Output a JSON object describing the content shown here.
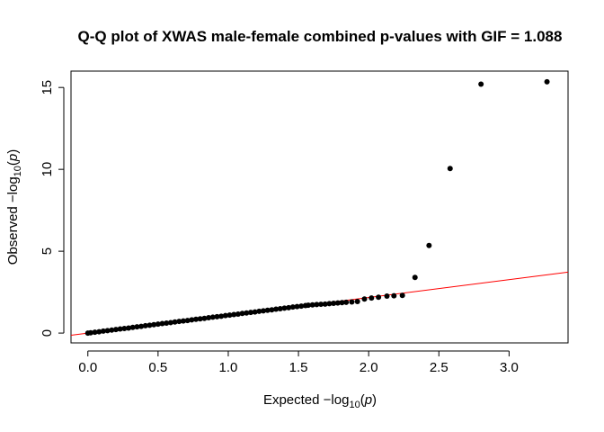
{
  "chart_data": {
    "type": "scatter",
    "title": "Q-Q plot of XWAS male-female combined p-values with GIF = 1.088",
    "xlabel": {
      "prefix": "Expected  −log",
      "sub": "10",
      "open": "(",
      "var": "p",
      "close": ")"
    },
    "ylabel": {
      "prefix": "Observed  −log",
      "sub": "10",
      "open": "(",
      "var": "p",
      "close": ")"
    },
    "xlim": [
      -0.12,
      3.42
    ],
    "ylim": [
      -0.6,
      16.0
    ],
    "xticks": [
      0.0,
      0.5,
      1.0,
      1.5,
      2.0,
      2.5,
      3.0
    ],
    "xtick_labels": [
      "0.0",
      "0.5",
      "1.0",
      "1.5",
      "2.0",
      "2.5",
      "3.0"
    ],
    "yticks": [
      0,
      5,
      10,
      15
    ],
    "ytick_labels": [
      "0",
      "5",
      "10",
      "15"
    ],
    "reference_line": {
      "intercept": 0,
      "slope": 1.088,
      "color": "#ff0000"
    },
    "point_color": "#000000",
    "grid": false,
    "legend": "none",
    "series": [
      {
        "points": [
          [
            0.0,
            0.0
          ],
          [
            0.02,
            0.02
          ],
          [
            0.05,
            0.05
          ],
          [
            0.08,
            0.08
          ],
          [
            0.11,
            0.12
          ],
          [
            0.14,
            0.15
          ],
          [
            0.17,
            0.18
          ],
          [
            0.2,
            0.22
          ],
          [
            0.23,
            0.25
          ],
          [
            0.26,
            0.28
          ],
          [
            0.29,
            0.31
          ],
          [
            0.32,
            0.35
          ],
          [
            0.35,
            0.38
          ],
          [
            0.38,
            0.41
          ],
          [
            0.41,
            0.45
          ],
          [
            0.44,
            0.48
          ],
          [
            0.47,
            0.51
          ],
          [
            0.5,
            0.55
          ],
          [
            0.53,
            0.58
          ],
          [
            0.56,
            0.61
          ],
          [
            0.59,
            0.64
          ],
          [
            0.62,
            0.68
          ],
          [
            0.65,
            0.71
          ],
          [
            0.68,
            0.74
          ],
          [
            0.71,
            0.77
          ],
          [
            0.74,
            0.81
          ],
          [
            0.77,
            0.84
          ],
          [
            0.8,
            0.87
          ],
          [
            0.83,
            0.9
          ],
          [
            0.86,
            0.94
          ],
          [
            0.89,
            0.97
          ],
          [
            0.92,
            1.0
          ],
          [
            0.95,
            1.03
          ],
          [
            0.98,
            1.07
          ],
          [
            1.01,
            1.1
          ],
          [
            1.04,
            1.13
          ],
          [
            1.07,
            1.16
          ],
          [
            1.1,
            1.2
          ],
          [
            1.13,
            1.23
          ],
          [
            1.16,
            1.26
          ],
          [
            1.19,
            1.29
          ],
          [
            1.22,
            1.33
          ],
          [
            1.25,
            1.36
          ],
          [
            1.28,
            1.39
          ],
          [
            1.31,
            1.42
          ],
          [
            1.34,
            1.46
          ],
          [
            1.37,
            1.49
          ],
          [
            1.4,
            1.52
          ],
          [
            1.43,
            1.55
          ],
          [
            1.46,
            1.59
          ],
          [
            1.49,
            1.62
          ],
          [
            1.52,
            1.65
          ],
          [
            1.55,
            1.68
          ],
          [
            1.57,
            1.7
          ],
          [
            1.6,
            1.72
          ],
          [
            1.63,
            1.74
          ],
          [
            1.66,
            1.76
          ],
          [
            1.69,
            1.77
          ],
          [
            1.72,
            1.8
          ],
          [
            1.75,
            1.82
          ],
          [
            1.78,
            1.84
          ],
          [
            1.81,
            1.86
          ],
          [
            1.84,
            1.88
          ],
          [
            1.88,
            1.9
          ],
          [
            1.92,
            1.93
          ],
          [
            1.97,
            2.08
          ],
          [
            2.02,
            2.14
          ],
          [
            2.07,
            2.19
          ],
          [
            2.13,
            2.26
          ],
          [
            2.18,
            2.28
          ],
          [
            2.24,
            2.3
          ],
          [
            2.33,
            3.4
          ],
          [
            2.43,
            5.35
          ],
          [
            2.58,
            10.05
          ],
          [
            2.8,
            15.2
          ],
          [
            3.27,
            15.35
          ]
        ]
      }
    ]
  }
}
